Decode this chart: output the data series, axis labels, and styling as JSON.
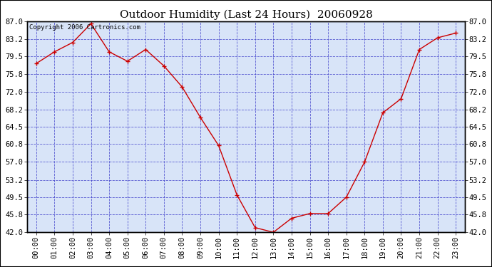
{
  "title": "Outdoor Humidity (Last 24 Hours)  20060928",
  "copyright": "Copyright 2006 Cartronics.com",
  "x_labels": [
    "00:00",
    "01:00",
    "02:00",
    "03:00",
    "04:00",
    "05:00",
    "06:00",
    "07:00",
    "08:00",
    "09:00",
    "10:00",
    "11:00",
    "12:00",
    "13:00",
    "14:00",
    "15:00",
    "16:00",
    "17:00",
    "18:00",
    "19:00",
    "20:00",
    "21:00",
    "22:00",
    "23:00"
  ],
  "y_values": [
    78.0,
    80.5,
    82.5,
    86.5,
    80.5,
    78.5,
    81.0,
    77.5,
    73.0,
    66.5,
    60.5,
    50.0,
    43.0,
    42.0,
    45.0,
    46.0,
    46.0,
    49.5,
    57.0,
    67.5,
    70.5,
    81.0,
    83.5,
    84.5
  ],
  "yticks": [
    42.0,
    45.8,
    49.5,
    53.2,
    57.0,
    60.8,
    64.5,
    68.2,
    72.0,
    75.8,
    79.5,
    83.2,
    87.0
  ],
  "line_color": "#cc0000",
  "marker_color": "#cc0000",
  "bg_color": "#d8e4f8",
  "grid_color": "#4444cc",
  "border_color": "#000000",
  "outer_bg": "#ffffff",
  "title_fontsize": 11,
  "tick_fontsize": 7.5,
  "copyright_fontsize": 6.5,
  "ylim": [
    42.0,
    87.0
  ],
  "xlim": [
    -0.5,
    23.5
  ]
}
